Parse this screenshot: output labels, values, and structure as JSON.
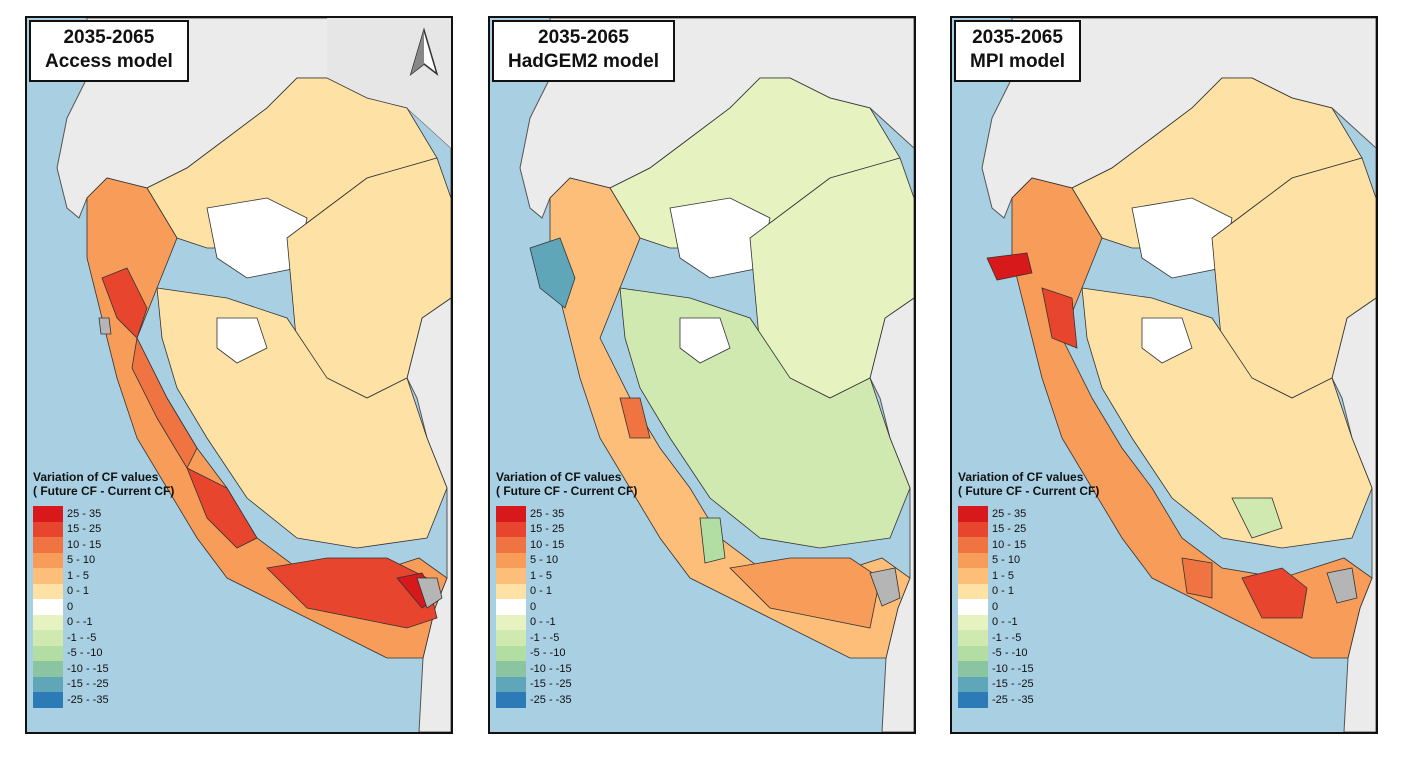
{
  "panels": [
    {
      "period": "2035-2065",
      "model": "Access model"
    },
    {
      "period": "2035-2065",
      "model": "HadGEM2 model"
    },
    {
      "period": "2035-2065",
      "model": "MPI model"
    }
  ],
  "legend": {
    "title_line1": "Variation of CF values",
    "title_line2": "( Future CF - Current CF)",
    "classes": [
      {
        "label": "25 - 35",
        "color": "#d7191c"
      },
      {
        "label": "15 - 25",
        "color": "#e8452f"
      },
      {
        "label": "10 - 15",
        "color": "#f07441"
      },
      {
        "label": "5 - 10",
        "color": "#f89c59"
      },
      {
        "label": "1 - 5",
        "color": "#fdbe7a"
      },
      {
        "label": "0 - 1",
        "color": "#fde1a5"
      },
      {
        "label": "0",
        "color": "#ffffff"
      },
      {
        "label": "0 - -1",
        "color": "#e6f3c1"
      },
      {
        "label": "-1 - -5",
        "color": "#cfe9b0"
      },
      {
        "label": "-5 - -10",
        "color": "#b3dea3"
      },
      {
        "label": "-10 - -15",
        "color": "#8ac4a0"
      },
      {
        "label": "-15 - -25",
        "color": "#5fa6b8"
      },
      {
        "label": "-25 - -35",
        "color": "#2c7bb6"
      }
    ]
  },
  "colors": {
    "ocean": "#a9cfe3",
    "land": "#ebebeb",
    "no_data": "#b5b5b5"
  },
  "north_arrow_icon": "north-arrow-icon"
}
